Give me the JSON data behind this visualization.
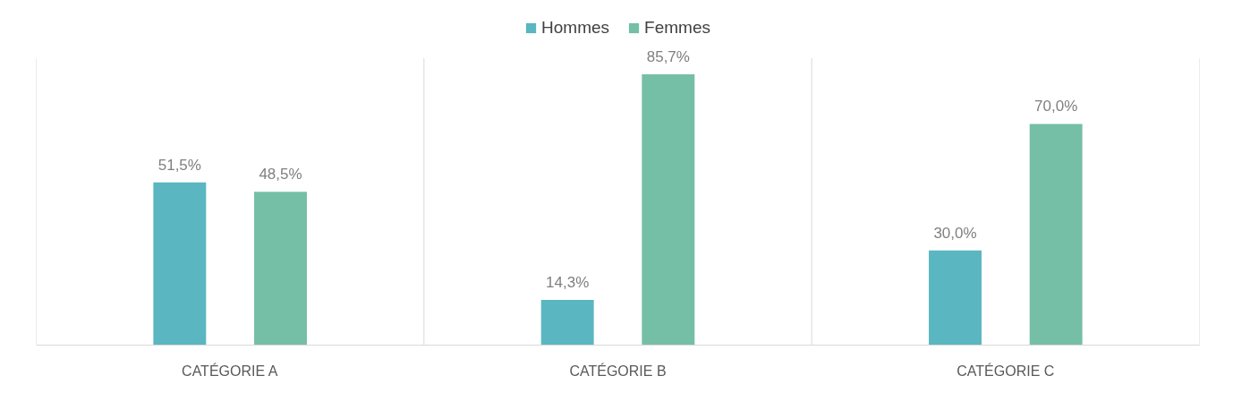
{
  "chart_data": {
    "type": "bar",
    "categories": [
      "CATÉGORIE A",
      "CATÉGORIE B",
      "CATÉGORIE C"
    ],
    "series": [
      {
        "name": "Hommes",
        "color": "#5ab6c0",
        "values": [
          51.5,
          14.3,
          30.0
        ],
        "value_labels": [
          "51,5%",
          "14,3%",
          "30,0%"
        ]
      },
      {
        "name": "Femmes",
        "color": "#74bfa6",
        "values": [
          48.5,
          85.7,
          70.0
        ],
        "value_labels": [
          "48,5%",
          "85,7%",
          "70,0%"
        ]
      }
    ],
    "legend": "top",
    "grid": "x"
  }
}
